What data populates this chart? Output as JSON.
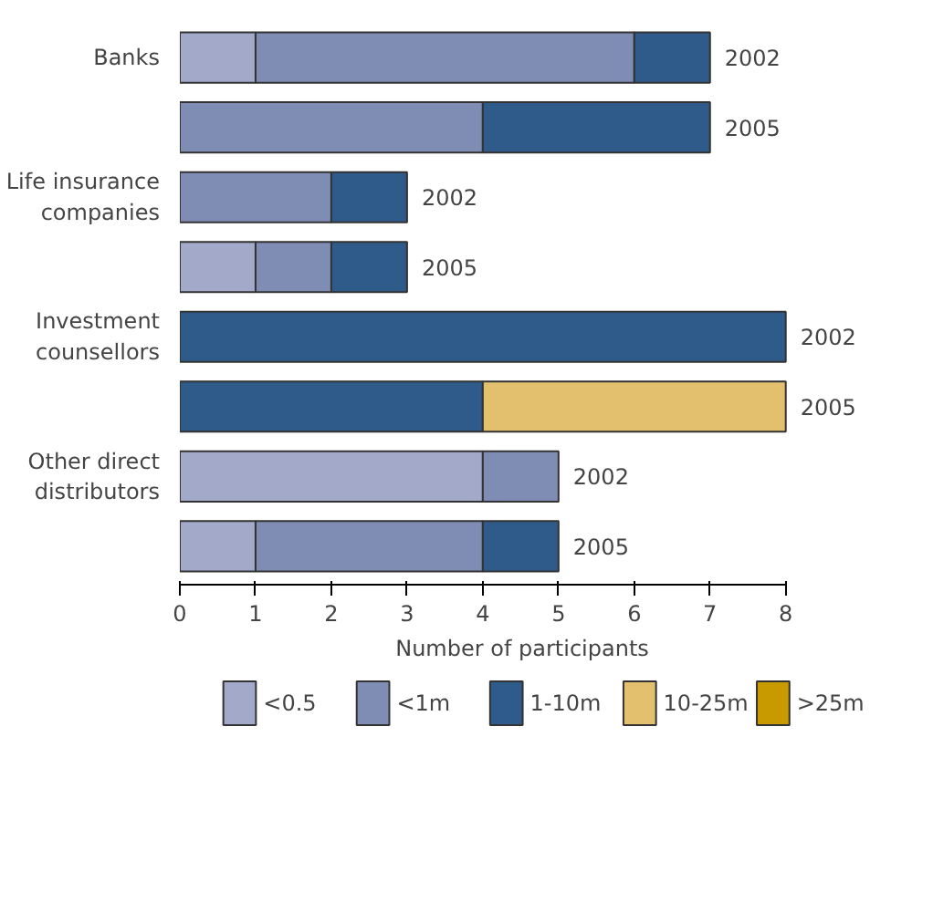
{
  "chart_data": {
    "type": "bar",
    "orientation": "horizontal",
    "stacked": true,
    "xlabel": "Number of participants",
    "categories": [
      "Banks",
      null,
      "Life insurance\ncompanies",
      null,
      "Investment\ncounsellors",
      null,
      "Other direct\ndistributors",
      null
    ],
    "series": [
      {
        "name": "<0.5",
        "color": "#a3a9c9",
        "values": [
          1,
          0,
          0,
          1,
          0,
          0,
          4,
          1
        ]
      },
      {
        "name": "<1m",
        "color": "#7f8db5",
        "values": [
          5,
          4,
          2,
          1,
          0,
          0,
          1,
          3
        ]
      },
      {
        "name": "1-10m",
        "color": "#2e5b8a",
        "values": [
          1,
          3,
          1,
          1,
          8,
          4,
          0,
          1
        ]
      },
      {
        "name": "10-25m",
        "color": "#e3c06d",
        "values": [
          0,
          0,
          0,
          0,
          0,
          4,
          0,
          0
        ]
      },
      {
        "name": ">25m",
        "color": "#c99a00",
        "values": [
          0,
          0,
          0,
          0,
          0,
          0,
          0,
          0
        ]
      }
    ],
    "annotations": [
      "2002",
      "2005",
      "2002",
      "2005",
      "2002",
      "2005",
      "2002",
      "2005"
    ],
    "xlim": [
      0,
      8
    ],
    "xticks": [
      0,
      1,
      2,
      3,
      4,
      5,
      6,
      7,
      8
    ],
    "grid": false,
    "legend": "bottom"
  }
}
